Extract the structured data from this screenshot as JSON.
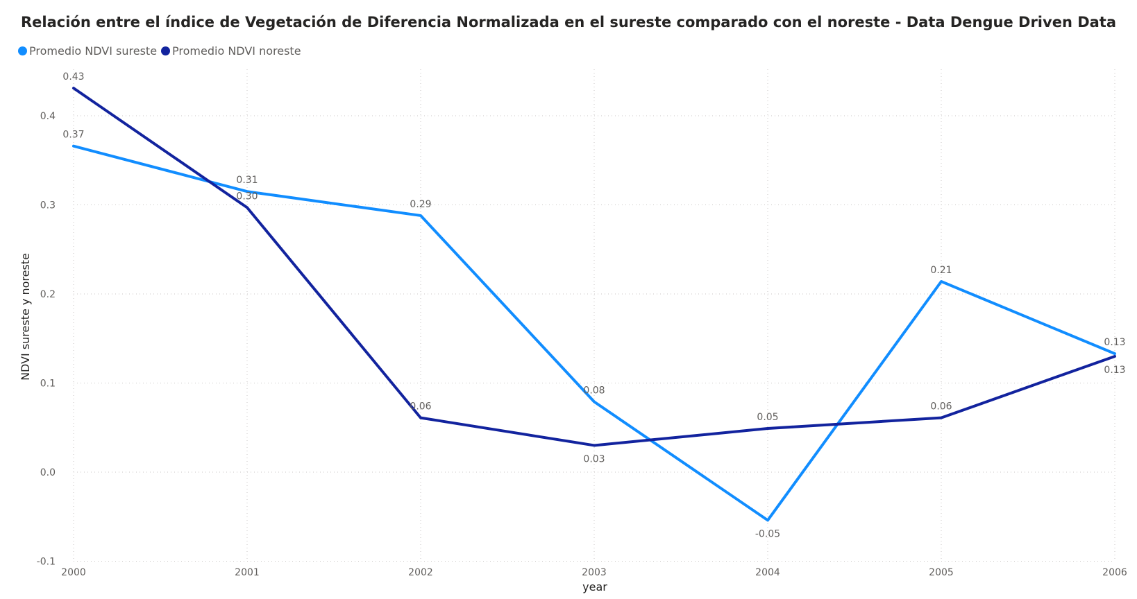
{
  "chart_data": {
    "type": "line",
    "title": "Relación entre el índice de Vegetación de Diferencia Normalizada en el sureste comparado con el noreste - Data Dengue Driven Data",
    "xlabel": "year",
    "ylabel": "NDVI sureste y noreste",
    "categories": [
      "2000",
      "2001",
      "2002",
      "2003",
      "2004",
      "2005",
      "2006"
    ],
    "yticks": [
      "-0.1",
      "0.0",
      "0.1",
      "0.2",
      "0.3",
      "0.4"
    ],
    "ylim": [
      -0.1,
      0.45
    ],
    "grid": true,
    "legend_position": "top-left",
    "series": [
      {
        "name": "Promedio NDVI sureste",
        "color": "#118DFF",
        "values": [
          0.366,
          0.315,
          0.288,
          0.079,
          -0.054,
          0.214,
          0.133
        ],
        "labels": [
          "0.37",
          "0.31",
          "0.29",
          "0.08",
          "-0.05",
          "0.21",
          "0.13"
        ],
        "label_pos": [
          "above",
          "above",
          "above",
          "above",
          "below",
          "above",
          "above"
        ]
      },
      {
        "name": "Promedio NDVI noreste",
        "color": "#12239E",
        "values": [
          0.431,
          0.297,
          0.061,
          0.03,
          0.049,
          0.061,
          0.13
        ],
        "labels": [
          "0.43",
          "0.30",
          "0.06",
          "0.03",
          "0.05",
          "0.06",
          "0.13"
        ],
        "label_pos": [
          "above",
          "above",
          "above",
          "below",
          "above",
          "above",
          "below"
        ]
      }
    ]
  }
}
